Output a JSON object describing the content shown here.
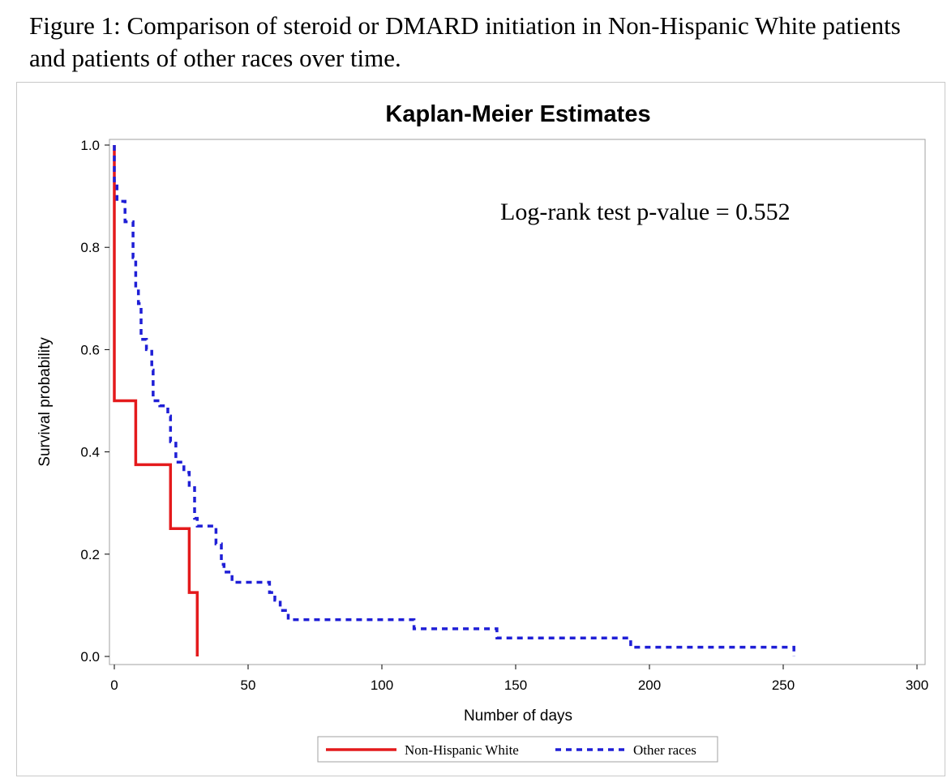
{
  "figure": {
    "caption": "Figure 1: Comparison of steroid or DMARD initiation in Non-Hispanic White patients and patients of other races over time."
  },
  "chart_data": {
    "type": "line",
    "subtype": "kaplan-meier step",
    "title": "Kaplan-Meier Estimates",
    "xlabel": "Number of days",
    "ylabel": "Survival probability",
    "xlim": [
      0,
      300
    ],
    "ylim": [
      0,
      1
    ],
    "xticks": [
      "0",
      "50",
      "100",
      "150",
      "200",
      "250",
      "300"
    ],
    "yticks": [
      "0.0",
      "0.2",
      "0.4",
      "0.6",
      "0.8",
      "1.0"
    ],
    "grid": false,
    "legend_position": "bottom",
    "annotation": "Log-rank test p-value  = 0.552",
    "series": [
      {
        "name": "Non-Hispanic White",
        "color": "#e41a1c",
        "style": "solid",
        "steps": [
          [
            0,
            1.0
          ],
          [
            0,
            0.5
          ],
          [
            8,
            0.375
          ],
          [
            21,
            0.25
          ],
          [
            28,
            0.125
          ],
          [
            31,
            0.0
          ]
        ],
        "end_x": 31
      },
      {
        "name": "Other races",
        "color": "#1f1fd6",
        "style": "dashed",
        "steps": [
          [
            0,
            1.0
          ],
          [
            0,
            0.93
          ],
          [
            1,
            0.89
          ],
          [
            4,
            0.85
          ],
          [
            7,
            0.78
          ],
          [
            8,
            0.72
          ],
          [
            9,
            0.69
          ],
          [
            10,
            0.62
          ],
          [
            12,
            0.6
          ],
          [
            14,
            0.56
          ],
          [
            14.5,
            0.5
          ],
          [
            17,
            0.49
          ],
          [
            20,
            0.47
          ],
          [
            21,
            0.42
          ],
          [
            23,
            0.38
          ],
          [
            26,
            0.36
          ],
          [
            28,
            0.33
          ],
          [
            30,
            0.27
          ],
          [
            31,
            0.255
          ],
          [
            38,
            0.22
          ],
          [
            40,
            0.18
          ],
          [
            41,
            0.165
          ],
          [
            44,
            0.145
          ],
          [
            58,
            0.125
          ],
          [
            60,
            0.11
          ],
          [
            62,
            0.09
          ],
          [
            65,
            0.072
          ],
          [
            112,
            0.054
          ],
          [
            143,
            0.036
          ],
          [
            193,
            0.018
          ],
          [
            254,
            0.0
          ]
        ],
        "end_x": 254
      }
    ]
  }
}
